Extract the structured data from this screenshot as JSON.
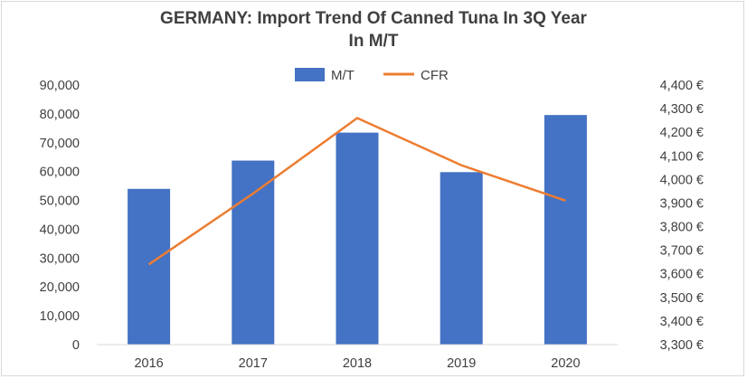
{
  "chart_data": {
    "type": "bar",
    "title_line1": "GERMANY: Import Trend Of Canned Tuna In 3Q Year",
    "title_line2": "In M/T",
    "categories": [
      "2016",
      "2017",
      "2018",
      "2019",
      "2020"
    ],
    "series": [
      {
        "name": "M/T",
        "kind": "bar",
        "axis": "left",
        "color": "#4472C4",
        "values": [
          54000,
          63800,
          73500,
          59800,
          79600
        ]
      },
      {
        "name": "CFR",
        "kind": "line",
        "axis": "right",
        "color": "#ED7D31",
        "values": [
          3640,
          3940,
          4260,
          4060,
          3910
        ]
      }
    ],
    "y_left": {
      "min": 0,
      "max": 90000,
      "step": 10000,
      "ticks": [
        "0",
        "10,000",
        "20,000",
        "30,000",
        "40,000",
        "50,000",
        "60,000",
        "70,000",
        "80,000",
        "90,000"
      ]
    },
    "y_right": {
      "min": 3300,
      "max": 4400,
      "step": 100,
      "ticks": [
        "3,300 €",
        "3,400 €",
        "3,500 €",
        "3,600 €",
        "3,700 €",
        "3,800 €",
        "3,900 €",
        "4,000 €",
        "4,100 €",
        "4,200 €",
        "4,300 €",
        "4,400 €"
      ]
    },
    "legend_position": "top-center",
    "grid": false
  }
}
